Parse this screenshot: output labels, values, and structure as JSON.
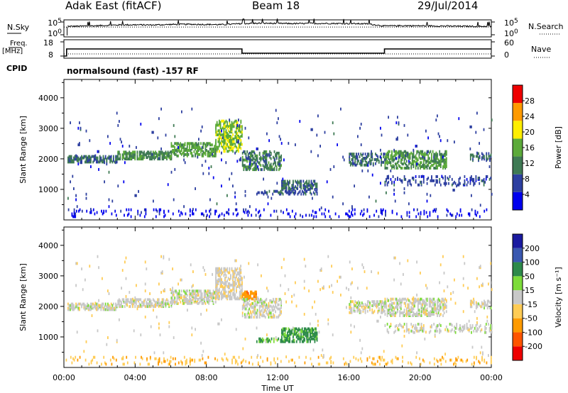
{
  "header": {
    "title": "Adak East (fitACF)",
    "beam": "Beam 18",
    "date": "29/Jul/2014"
  },
  "chart_data": [
    {
      "type": "line",
      "panel": "sky-noise",
      "ylabel_left": "N.Sky",
      "ylabel_right": "N.Search",
      "y_ticks_left": [
        "10^5",
        "10^0"
      ],
      "y_ticks_right": [
        "10^5",
        "10^0"
      ],
      "scale": "log",
      "series": [
        {
          "name": "N.Sky",
          "style": "solid",
          "x": [
            0.0,
            0.2,
            1,
            2,
            3,
            4,
            5,
            6,
            7,
            8,
            9,
            10,
            11,
            12,
            13,
            14,
            15,
            16,
            17,
            18,
            19,
            20,
            21,
            22,
            23,
            24
          ],
          "y_frac": [
            0.1,
            0.62,
            0.63,
            0.66,
            0.7,
            0.71,
            0.7,
            0.73,
            0.74,
            0.73,
            0.72,
            0.78,
            0.8,
            0.79,
            0.78,
            0.79,
            0.79,
            0.78,
            0.77,
            0.64,
            0.66,
            0.65,
            0.64,
            0.63,
            0.62,
            0.62
          ]
        },
        {
          "name": "N.Search",
          "style": "dotted",
          "x": [
            0,
            24
          ],
          "y_frac": [
            0.62,
            0.62
          ]
        }
      ]
    },
    {
      "type": "line",
      "panel": "frequency",
      "ylabel_left": "Freq. [MHz]",
      "ylabel_right": "Nave",
      "y_ticks_left": [
        18,
        8
      ],
      "y_ticks_right": [
        60,
        0
      ],
      "series": [
        {
          "name": "Freq.",
          "style": "solid",
          "x": [
            0,
            0.15,
            0.15,
            10,
            10,
            18,
            18,
            24
          ],
          "y": [
            8,
            8,
            13,
            13,
            10,
            10,
            13,
            13
          ]
        },
        {
          "name": "Nave",
          "style": "dotted",
          "x": [
            0,
            24
          ],
          "y": [
            9.5,
            9.5
          ]
        }
      ]
    },
    {
      "type": "heatmap",
      "panel": "power",
      "annotation": "normalsound (fast) -157 RF",
      "ylabel": "Slant Range [km]",
      "y_ticks": [
        1000,
        2000,
        3000,
        4000
      ],
      "ylim": [
        0,
        4600
      ],
      "xlim": [
        0,
        24
      ],
      "colorbar_label": "Power [dB]",
      "colorbar_ticks": [
        "4",
        "8",
        "12",
        "16",
        "20",
        "24",
        "28"
      ],
      "colorbar_colors": [
        "#0000ee",
        "#2d3fa0",
        "#3f7a54",
        "#5caa3a",
        "#ffee00",
        "#ff9a00",
        "#ee0000"
      ],
      "echo_regions": [
        {
          "x": [
            0.1,
            24
          ],
          "range": [
            60,
            330
          ],
          "level": 0,
          "density": 0.1
        },
        {
          "x": [
            0.2,
            3.0
          ],
          "range": [
            1850,
            2050
          ],
          "level": 1.8,
          "density": 0.55
        },
        {
          "x": [
            3.0,
            6.0
          ],
          "range": [
            1950,
            2200
          ],
          "level": 2.2,
          "density": 0.55
        },
        {
          "x": [
            6.0,
            8.5
          ],
          "range": [
            2050,
            2500
          ],
          "level": 2.8,
          "density": 0.5
        },
        {
          "x": [
            8.5,
            10.0
          ],
          "range": [
            2200,
            3200
          ],
          "level": 3.3,
          "density": 0.45
        },
        {
          "x": [
            10.0,
            12.2
          ],
          "range": [
            1600,
            2200
          ],
          "level": 2.0,
          "density": 0.35
        },
        {
          "x": [
            12.2,
            14.2
          ],
          "range": [
            950,
            1250
          ],
          "level": 1.8,
          "density": 0.45
        },
        {
          "x": [
            10.8,
            14.2
          ],
          "range": [
            800,
            900
          ],
          "level": 1.2,
          "density": 0.35
        },
        {
          "x": [
            16.0,
            18.0
          ],
          "range": [
            1750,
            2150
          ],
          "level": 1.7,
          "density": 0.4
        },
        {
          "x": [
            18.0,
            21.5
          ],
          "range": [
            1650,
            2200
          ],
          "level": 2.6,
          "density": 0.45
        },
        {
          "x": [
            18.0,
            24.0
          ],
          "range": [
            1100,
            1400
          ],
          "level": 1.0,
          "density": 0.18
        },
        {
          "x": [
            22.8,
            24.0
          ],
          "range": [
            1900,
            2150
          ],
          "level": 1.6,
          "density": 0.35
        },
        {
          "x": [
            0.2,
            24.0
          ],
          "range": [
            300,
            3600
          ],
          "level": 0.9,
          "density": 0.01
        }
      ]
    },
    {
      "type": "heatmap",
      "panel": "velocity",
      "ylabel": "Slant Range [km]",
      "y_ticks": [
        1000,
        2000,
        3000,
        4000
      ],
      "ylim": [
        0,
        4600
      ],
      "xlim": [
        0,
        24
      ],
      "xlabel": "Time UT",
      "x_ticks": [
        "00:00",
        "04:00",
        "08:00",
        "12:00",
        "16:00",
        "20:00",
        "00:00"
      ],
      "colorbar_label": "Velocity [m s⁻¹]",
      "colorbar_ticks": [
        "-200",
        "-100",
        "-50",
        "-15",
        "15",
        "50",
        "100",
        "200"
      ],
      "colorbar_colors": [
        "#ee0000",
        "#ff5500",
        "#ff9a00",
        "#ffcc55",
        "#c8c8c8",
        "#7ddc3a",
        "#2d8a4a",
        "#3a58b0",
        "#1a1aa0"
      ],
      "echo_regions": [
        {
          "x": [
            0.1,
            24
          ],
          "range": [
            60,
            330
          ],
          "level": -1.2,
          "density": 0.1
        },
        {
          "x": [
            0.2,
            3.0
          ],
          "range": [
            1850,
            2050
          ],
          "level": 0,
          "density": 0.55
        },
        {
          "x": [
            3.0,
            6.0
          ],
          "range": [
            1950,
            2200
          ],
          "level": 0,
          "density": 0.55
        },
        {
          "x": [
            6.0,
            8.5
          ],
          "range": [
            2050,
            2500
          ],
          "level": 0,
          "density": 0.5
        },
        {
          "x": [
            8.5,
            10.0
          ],
          "range": [
            2200,
            3200
          ],
          "level": -0.2,
          "density": 0.45
        },
        {
          "x": [
            10.0,
            10.8
          ],
          "range": [
            2200,
            2450
          ],
          "level": -2.2,
          "density": 0.6
        },
        {
          "x": [
            10.0,
            12.2
          ],
          "range": [
            1600,
            2200
          ],
          "level": 0,
          "density": 0.35
        },
        {
          "x": [
            12.2,
            14.2
          ],
          "range": [
            950,
            1250
          ],
          "level": 1.8,
          "density": 0.55
        },
        {
          "x": [
            10.8,
            14.2
          ],
          "range": [
            800,
            900
          ],
          "level": 1.8,
          "density": 0.45
        },
        {
          "x": [
            16.0,
            18.0
          ],
          "range": [
            1750,
            2150
          ],
          "level": 0,
          "density": 0.4
        },
        {
          "x": [
            18.0,
            21.5
          ],
          "range": [
            1650,
            2200
          ],
          "level": 0,
          "density": 0.45
        },
        {
          "x": [
            18.0,
            24.0
          ],
          "range": [
            1100,
            1400
          ],
          "level": 0,
          "density": 0.18
        },
        {
          "x": [
            22.8,
            24.0
          ],
          "range": [
            1900,
            2150
          ],
          "level": 0,
          "density": 0.35
        },
        {
          "x": [
            0.2,
            24.0
          ],
          "range": [
            300,
            3600
          ],
          "level": -0.5,
          "density": 0.01
        }
      ]
    }
  ]
}
